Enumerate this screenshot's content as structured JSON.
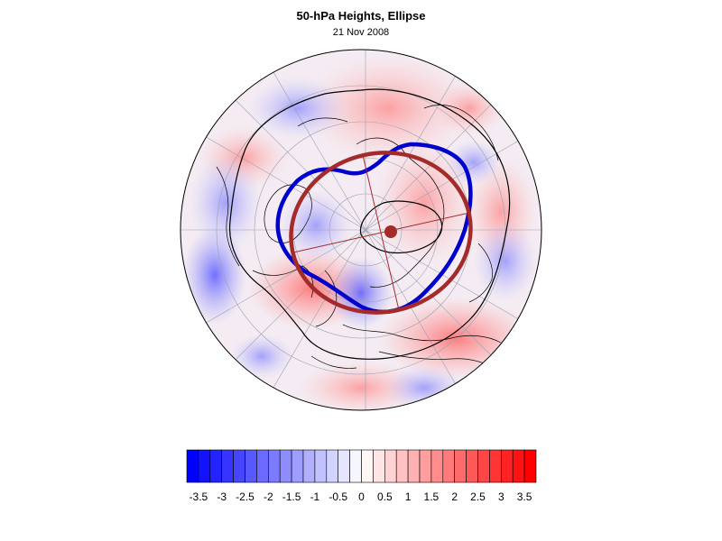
{
  "title": "50-hPa Heights, Ellipse",
  "date": "21 Nov 2008",
  "colors": {
    "negative_max": "#0000ff",
    "positive_max": "#ff0000",
    "ellipse": "#a52a2a",
    "vortex_edge": "#0000cd",
    "contour": "#000000"
  },
  "colorbar": {
    "min": -3.75,
    "max": 3.75,
    "step": 0.25,
    "tick_labels": [
      "-3.5",
      "-3",
      "-2.5",
      "-2",
      "-1.5",
      "-1",
      "-0.5",
      "0",
      "0.5",
      "1",
      "1.5",
      "2",
      "2.5",
      "3",
      "3.5"
    ]
  }
}
